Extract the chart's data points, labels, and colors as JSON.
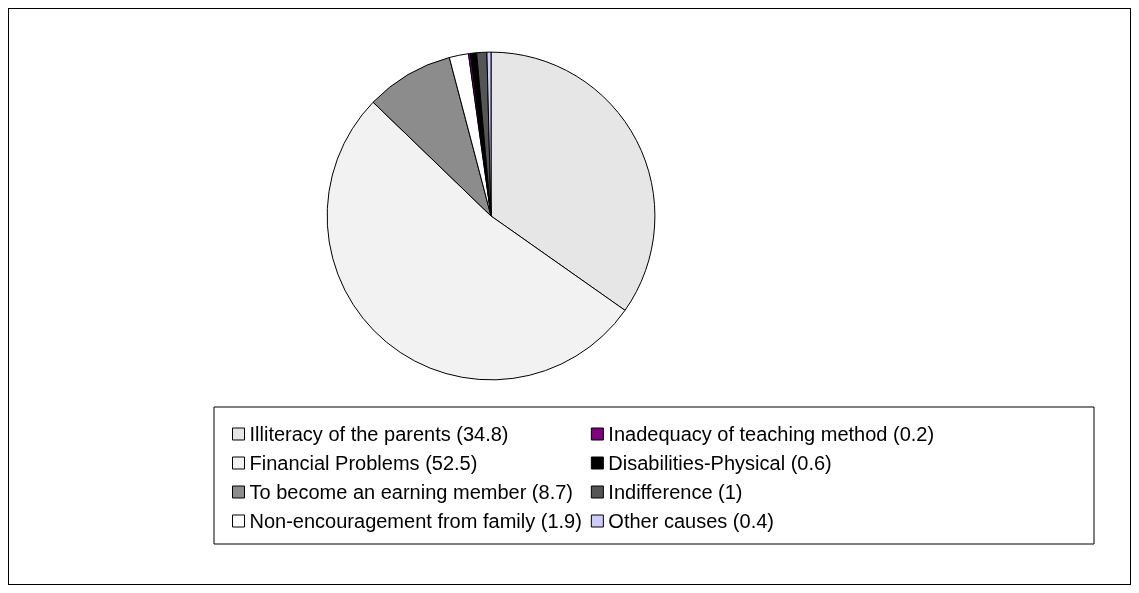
{
  "chart_data": {
    "type": "pie",
    "categories": [
      "Illiteracy of the parents (34.8)",
      "Financial Problems (52.5)",
      "To become an earning member (8.7)",
      "Non-encouragement from family (1.9)",
      "Inadequacy of teaching method (0.2)",
      "Disabilities-Physical (0.6)",
      "Indifference (1)",
      "Other causes (0.4)"
    ],
    "values": [
      34.8,
      52.5,
      8.7,
      1.9,
      0.2,
      0.6,
      1,
      0.4
    ],
    "colors": [
      "#e6e6e6",
      "#f2f2f2",
      "#8c8c8c",
      "#ffffff",
      "#800080",
      "#000000",
      "#555555",
      "#ccccff"
    ],
    "legend": "bottom"
  }
}
